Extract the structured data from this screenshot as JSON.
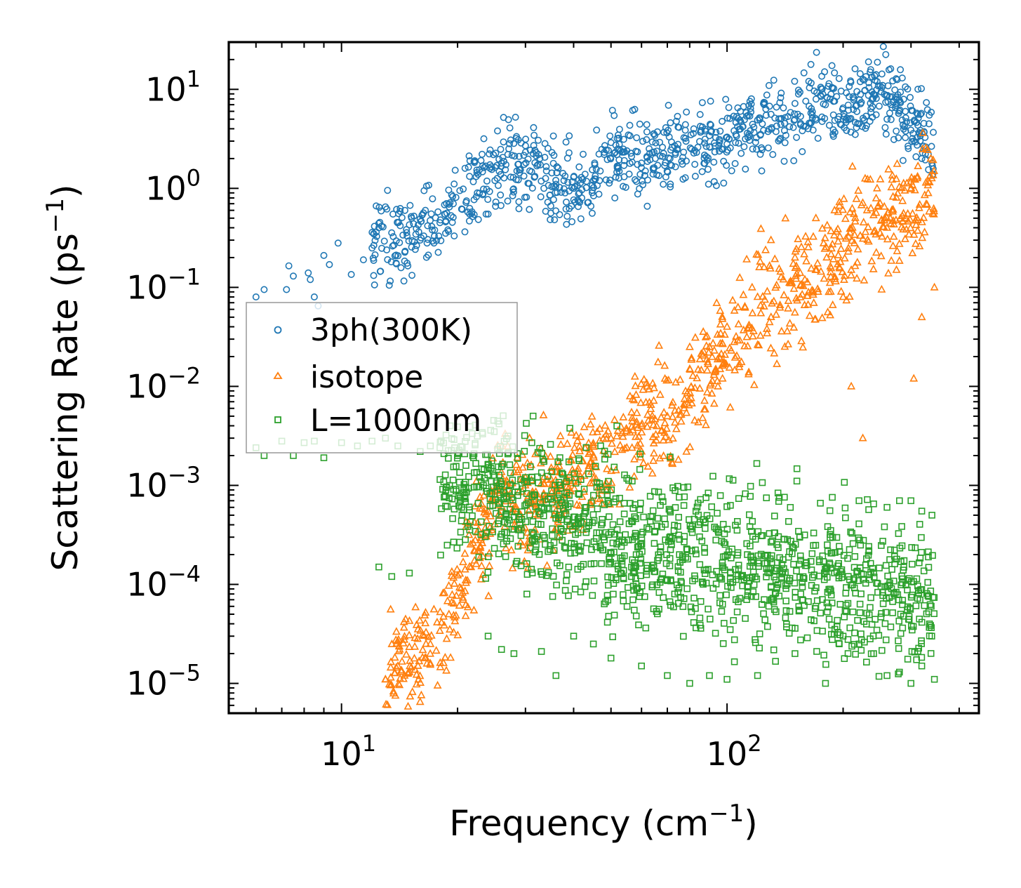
{
  "chart_data": {
    "type": "scatter",
    "title": "",
    "xlabel": "Frequency (cm",
    "xlabel_exp": "−1",
    "xlabel_close": ")",
    "ylabel": "Scattering Rate (ps",
    "ylabel_exp": "−1",
    "ylabel_close": ")",
    "xscale": "log",
    "yscale": "log",
    "xlim": [
      5.1,
      450
    ],
    "ylim": [
      5e-06,
      30
    ],
    "x_ticks": [
      {
        "value": 10,
        "base": "10",
        "exp": "1"
      },
      {
        "value": 100,
        "base": "10",
        "exp": "2"
      }
    ],
    "y_ticks": [
      {
        "value": 10,
        "base": "10",
        "exp": "1"
      },
      {
        "value": 1,
        "base": "10",
        "exp": "0"
      },
      {
        "value": 0.1,
        "base": "10",
        "exp": "−1"
      },
      {
        "value": 0.01,
        "base": "10",
        "exp": "−2"
      },
      {
        "value": 0.001,
        "base": "10",
        "exp": "−3"
      },
      {
        "value": 0.0001,
        "base": "10",
        "exp": "−4"
      },
      {
        "value": 1e-05,
        "base": "10",
        "exp": "−5"
      }
    ],
    "grid": false,
    "legend_position": "center-left",
    "series": [
      {
        "name": "3ph(300K)",
        "marker": "circle",
        "color": "#1f77b4",
        "points": [
          [
            6,
            0.08
          ],
          [
            6.3,
            0.095
          ],
          [
            7.2,
            0.095
          ],
          [
            7.3,
            0.165
          ],
          [
            7.5,
            0.13
          ],
          [
            8.2,
            0.14
          ],
          [
            8.3,
            0.12
          ],
          [
            8.5,
            0.08
          ],
          [
            8.7,
            0.065
          ],
          [
            9,
            0.21
          ],
          [
            9.3,
            0.17
          ],
          [
            9.8,
            0.28
          ],
          [
            10.6,
            0.135
          ],
          [
            11.4,
            0.19
          ],
          [
            12,
            0.25
          ],
          [
            12.5,
            0.4
          ],
          [
            13,
            0.65
          ],
          [
            13.3,
            0.105
          ],
          [
            13.6,
            0.55
          ],
          [
            14.2,
            0.42
          ],
          [
            14.8,
            0.33
          ],
          [
            15.2,
            0.5
          ],
          [
            16,
            0.3
          ],
          [
            16.5,
            0.6
          ],
          [
            17.2,
            0.38
          ],
          [
            18,
            0.45
          ],
          [
            18.5,
            0.55
          ],
          [
            19.5,
            0.7
          ],
          [
            20.5,
            0.62
          ],
          [
            21.5,
            0.55
          ],
          [
            22.5,
            0.9
          ],
          [
            24,
            0.55
          ],
          [
            25,
            1.2
          ],
          [
            26,
            1.8
          ],
          [
            27,
            2.2
          ],
          [
            28.5,
            1.5
          ],
          [
            30,
            2.7
          ],
          [
            32,
            2.3
          ],
          [
            34,
            1.5
          ],
          [
            36,
            1.1
          ],
          [
            38,
            0.9
          ],
          [
            40,
            1.3
          ],
          [
            42,
            0.8
          ],
          [
            45,
            1.2
          ],
          [
            48,
            2.2
          ],
          [
            50,
            2.9
          ],
          [
            53,
            2.4
          ],
          [
            56,
            3.4
          ],
          [
            60,
            1.8
          ],
          [
            64,
            2.3
          ],
          [
            68,
            2.1
          ],
          [
            72,
            2.6
          ],
          [
            78,
            3.2
          ],
          [
            84,
            2.6
          ],
          [
            90,
            3.4
          ],
          [
            100,
            3.3
          ],
          [
            110,
            4.2
          ],
          [
            120,
            4.9
          ],
          [
            123,
            1.5
          ],
          [
            130,
            5.6
          ],
          [
            140,
            6.5
          ],
          [
            150,
            7.2
          ],
          [
            160,
            7.6
          ],
          [
            175,
            10.5
          ],
          [
            185,
            8
          ],
          [
            200,
            6.5
          ],
          [
            215,
            3.5
          ],
          [
            220,
            4.5
          ],
          [
            235,
            15
          ],
          [
            245,
            12
          ],
          [
            260,
            5
          ],
          [
            275,
            8
          ],
          [
            290,
            6
          ],
          [
            305,
            3
          ],
          [
            320,
            2
          ],
          [
            340,
            1.8
          ]
        ],
        "band": {
          "x_from": 12,
          "x_to": 345,
          "anchors": [
            [
              12,
              0.28
            ],
            [
              15,
              0.34
            ],
            [
              18,
              0.45
            ],
            [
              20,
              0.6
            ],
            [
              22,
              0.95
            ],
            [
              25,
              1.5
            ],
            [
              28,
              1.9
            ],
            [
              30,
              1.7
            ],
            [
              35,
              1.2
            ],
            [
              40,
              0.95
            ],
            [
              45,
              1.1
            ],
            [
              50,
              1.9
            ],
            [
              55,
              2.4
            ],
            [
              60,
              1.9
            ],
            [
              70,
              2.2
            ],
            [
              80,
              2.6
            ],
            [
              90,
              2.9
            ],
            [
              100,
              3.1
            ],
            [
              110,
              3.8
            ],
            [
              120,
              4.2
            ],
            [
              140,
              5.5
            ],
            [
              160,
              6.8
            ],
            [
              175,
              8.5
            ],
            [
              200,
              7
            ],
            [
              230,
              9
            ],
            [
              250,
              12
            ],
            [
              280,
              7
            ],
            [
              310,
              4
            ],
            [
              345,
              2.5
            ]
          ],
          "spread_decades": 0.2,
          "count": 950
        }
      },
      {
        "name": "isotope",
        "marker": "triangle",
        "color": "#ff7f0e",
        "points": [
          [
            13,
            1.1e-05
          ],
          [
            14,
            1.5e-05
          ],
          [
            15,
            1.3e-05
          ],
          [
            17,
            2.5e-05
          ],
          [
            19,
            5e-05
          ],
          [
            21,
            0.00011
          ],
          [
            23,
            0.00028
          ],
          [
            26,
            0.0011
          ],
          [
            30,
            0.0012
          ],
          [
            35,
            0.0015
          ],
          [
            40,
            0.0011
          ],
          [
            45,
            0.002
          ],
          [
            50,
            0.003
          ],
          [
            60,
            0.004
          ],
          [
            70,
            0.005
          ],
          [
            80,
            0.015
          ],
          [
            90,
            0.025
          ],
          [
            100,
            0.04
          ],
          [
            120,
            0.08
          ],
          [
            130,
            0.3
          ],
          [
            150,
            0.2
          ],
          [
            170,
            0.5
          ],
          [
            190,
            0.6
          ],
          [
            200,
            0.08
          ],
          [
            210,
            0.01
          ],
          [
            225,
            0.003
          ],
          [
            245,
            1
          ],
          [
            260,
            0.4
          ],
          [
            275,
            0.15
          ],
          [
            290,
            0.5
          ],
          [
            305,
            0.012
          ],
          [
            320,
            0.05
          ],
          [
            345,
            0.1
          ]
        ],
        "band": {
          "x_from": 13,
          "x_to": 345,
          "anchors": [
            [
              13,
              1.2e-05
            ],
            [
              16,
              1.8e-05
            ],
            [
              18,
              3.5e-05
            ],
            [
              20,
              8e-05
            ],
            [
              22,
              0.00018
            ],
            [
              24,
              0.0004
            ],
            [
              26,
              0.0009
            ],
            [
              30,
              0.0007
            ],
            [
              35,
              0.0008
            ],
            [
              40,
              0.0013
            ],
            [
              45,
              0.0018
            ],
            [
              50,
              0.0024
            ],
            [
              60,
              0.0035
            ],
            [
              70,
              0.0045
            ],
            [
              80,
              0.009
            ],
            [
              90,
              0.016
            ],
            [
              100,
              0.025
            ],
            [
              110,
              0.035
            ],
            [
              120,
              0.06
            ],
            [
              140,
              0.08
            ],
            [
              160,
              0.12
            ],
            [
              180,
              0.15
            ],
            [
              200,
              0.3
            ],
            [
              230,
              0.4
            ],
            [
              260,
              0.5
            ],
            [
              290,
              0.6
            ],
            [
              320,
              0.8
            ],
            [
              345,
              1.1
            ]
          ],
          "spread_decades": 0.28,
          "count": 1000
        }
      },
      {
        "name": "L=1000nm",
        "marker": "square",
        "color": "#2ca02c",
        "points": [
          [
            6,
            0.0024
          ],
          [
            6.3,
            0.002
          ],
          [
            7,
            0.0028
          ],
          [
            7.5,
            0.002
          ],
          [
            8,
            0.0027
          ],
          [
            8.5,
            0.0028
          ],
          [
            9,
            0.0019
          ],
          [
            10,
            0.0027
          ],
          [
            11,
            0.0025
          ],
          [
            12,
            0.0028
          ],
          [
            12.5,
            0.00015
          ],
          [
            13,
            0.003
          ],
          [
            13.5,
            0.00012
          ],
          [
            14,
            0.0025
          ],
          [
            15,
            0.00013
          ],
          [
            16,
            0.0022
          ],
          [
            17,
            0.0025
          ],
          [
            18,
            0.0024
          ],
          [
            20,
            0.002
          ],
          [
            22,
            0.0019
          ],
          [
            24,
            3e-05
          ],
          [
            26,
            2.2e-05
          ],
          [
            28,
            2e-05
          ],
          [
            30,
            0.0012
          ],
          [
            33,
            2.1e-05
          ],
          [
            36,
            1.2e-05
          ],
          [
            40,
            3e-05
          ],
          [
            45,
            2.5e-05
          ],
          [
            50,
            1.8e-05
          ],
          [
            60,
            1.5e-05
          ],
          [
            70,
            1.2e-05
          ],
          [
            80,
            1e-05
          ],
          [
            90,
            1.2e-05
          ],
          [
            100,
            1.1e-05
          ],
          [
            120,
            1.2e-05
          ],
          [
            150,
            2e-05
          ],
          [
            180,
            1e-05
          ],
          [
            200,
            3e-05
          ],
          [
            220,
            2.5e-05
          ],
          [
            240,
            2e-05
          ],
          [
            260,
            1.2e-05
          ],
          [
            280,
            1.3e-05
          ],
          [
            300,
            1e-05
          ],
          [
            320,
            1.5e-05
          ],
          [
            345,
            1.1e-05
          ],
          [
            340,
            0.0005
          ],
          [
            320,
            0.00055
          ],
          [
            300,
            0.0007
          ],
          [
            280,
            0.0007
          ],
          [
            260,
            0.0006
          ],
          [
            240,
            0.00065
          ],
          [
            220,
            0.0007
          ]
        ],
        "band": {
          "x_from": 18,
          "x_to": 345,
          "anchors": [
            [
              18,
              0.0012
            ],
            [
              20,
              0.0011
            ],
            [
              23,
              0.0009
            ],
            [
              26,
              0.00075
            ],
            [
              30,
              0.0006
            ],
            [
              35,
              0.0005
            ],
            [
              40,
              0.00042
            ],
            [
              50,
              0.0003
            ],
            [
              60,
              0.00025
            ],
            [
              70,
              0.00022
            ],
            [
              80,
              0.0002
            ],
            [
              100,
              0.00018
            ],
            [
              120,
              0.00015
            ],
            [
              150,
              0.00012
            ],
            [
              200,
              0.0001
            ],
            [
              250,
              9e-05
            ],
            [
              300,
              8e-05
            ],
            [
              345,
              7e-05
            ]
          ],
          "spread_decades": 0.38,
          "count": 1300
        }
      }
    ]
  }
}
